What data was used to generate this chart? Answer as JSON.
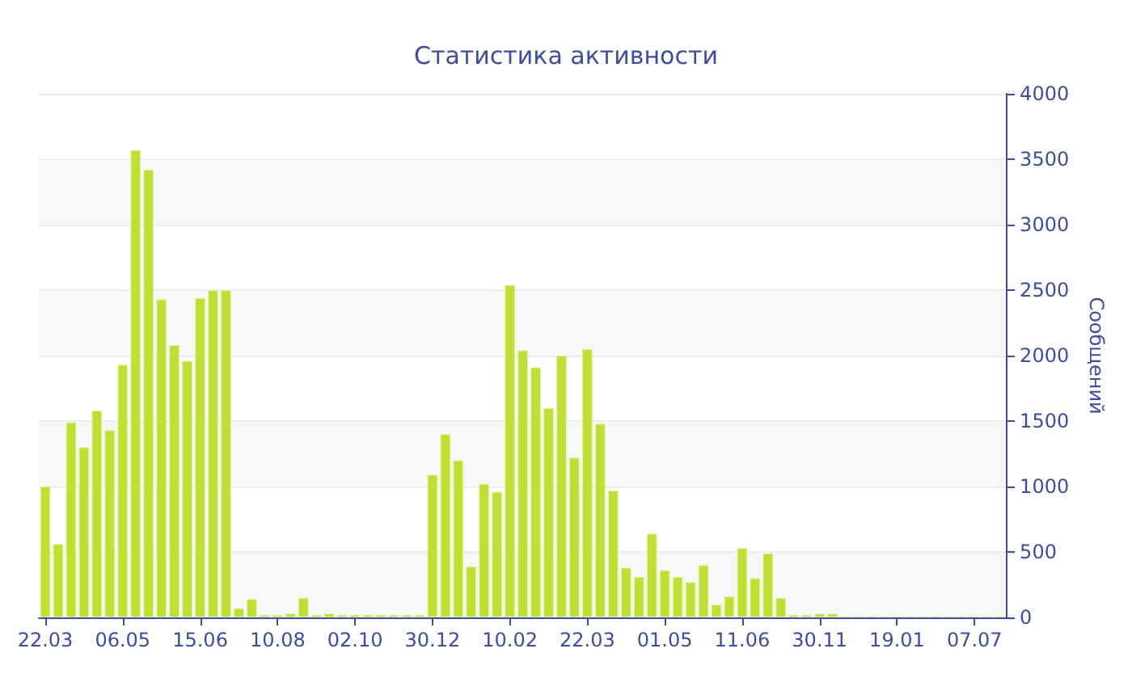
{
  "chart_data": {
    "type": "bar",
    "title": "Статистика активности",
    "ylabel": "Сообщений",
    "categories": [
      "22.03",
      null,
      null,
      null,
      null,
      null,
      "06.05",
      null,
      null,
      null,
      null,
      null,
      "15.06",
      null,
      null,
      null,
      null,
      null,
      "10.08",
      null,
      null,
      null,
      null,
      null,
      "02.10",
      null,
      null,
      null,
      null,
      null,
      "30.12",
      null,
      null,
      null,
      null,
      null,
      "10.02",
      null,
      null,
      null,
      null,
      null,
      "22.03",
      null,
      null,
      null,
      null,
      null,
      "01.05",
      null,
      null,
      null,
      null,
      null,
      "11.06",
      null,
      null,
      null,
      null,
      null,
      "30.11",
      null,
      null,
      null,
      null,
      null,
      "19.01",
      null,
      null,
      null,
      null,
      null,
      "07.07",
      null,
      null
    ],
    "values": [
      1000,
      560,
      1490,
      1300,
      1580,
      1430,
      1930,
      3570,
      3420,
      2430,
      2080,
      1960,
      2440,
      2500,
      2500,
      70,
      140,
      20,
      20,
      30,
      150,
      20,
      30,
      20,
      20,
      20,
      20,
      20,
      20,
      20,
      1090,
      1400,
      1200,
      390,
      1020,
      960,
      2540,
      2040,
      1910,
      1600,
      2000,
      1220,
      2050,
      1480,
      970,
      380,
      310,
      640,
      360,
      310,
      270,
      400,
      100,
      160,
      530,
      300,
      490,
      150,
      20,
      20,
      30,
      30,
      10,
      10,
      10,
      10,
      10,
      10,
      10,
      10,
      10,
      10,
      10,
      10,
      10
    ],
    "color": "#bde032",
    "ylim": [
      0,
      4000
    ],
    "yticks": [
      0,
      500,
      1000,
      1500,
      2000,
      2500,
      3000,
      3500,
      4000
    ],
    "grid": "y"
  }
}
